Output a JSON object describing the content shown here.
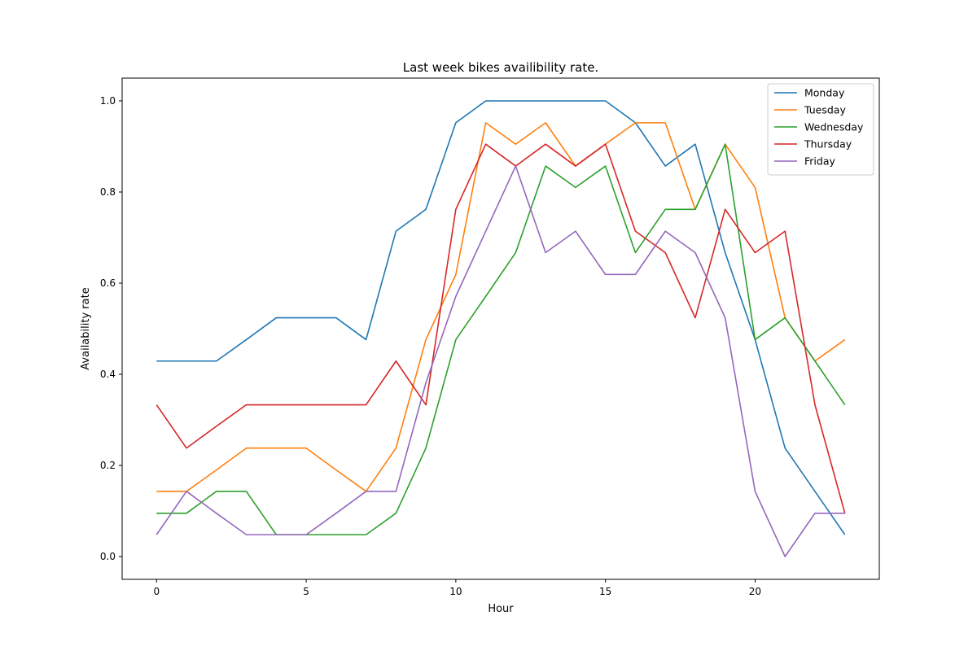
{
  "chart_data": {
    "type": "line",
    "title": "Last week bikes availibility rate.",
    "xlabel": "Hour",
    "ylabel": "Availability rate",
    "xlim": [
      -1.15,
      24.15
    ],
    "ylim": [
      -0.05,
      1.05
    ],
    "xticks": [
      0,
      5,
      10,
      15,
      20
    ],
    "xtick_labels": [
      "0",
      "5",
      "10",
      "15",
      "20"
    ],
    "yticks": [
      0.0,
      0.2,
      0.4,
      0.6,
      0.8,
      1.0
    ],
    "ytick_labels": [
      "0.0",
      "0.2",
      "0.4",
      "0.6",
      "0.8",
      "1.0"
    ],
    "grid": false,
    "legend_position": "top-right",
    "x": [
      0,
      1,
      2,
      3,
      4,
      5,
      6,
      7,
      8,
      9,
      10,
      11,
      12,
      13,
      14,
      15,
      16,
      17,
      18,
      19,
      20,
      21,
      22,
      23
    ],
    "series": [
      {
        "name": "Monday",
        "color": "#1f77b4",
        "values": [
          0.429,
          0.429,
          0.429,
          0.476,
          0.524,
          0.524,
          0.524,
          0.476,
          0.714,
          0.762,
          0.952,
          1.0,
          1.0,
          1.0,
          1.0,
          1.0,
          0.952,
          0.857,
          0.905,
          0.667,
          0.476,
          0.238,
          0.143,
          0.048
        ]
      },
      {
        "name": "Tuesday",
        "color": "#ff7f0e",
        "values": [
          0.143,
          0.143,
          0.19,
          0.238,
          0.238,
          0.238,
          0.19,
          0.143,
          0.238,
          0.476,
          0.619,
          0.952,
          0.905,
          0.952,
          0.857,
          0.905,
          0.952,
          0.952,
          0.762,
          0.905,
          0.81,
          0.524,
          0.429,
          0.476
        ]
      },
      {
        "name": "Wednesday",
        "color": "#2ca02c",
        "values": [
          0.095,
          0.095,
          0.143,
          0.143,
          0.048,
          0.048,
          0.048,
          0.048,
          0.095,
          0.238,
          0.476,
          0.571,
          0.667,
          0.857,
          0.81,
          0.857,
          0.667,
          0.762,
          0.762,
          0.905,
          0.476,
          0.524,
          0.429,
          0.333
        ]
      },
      {
        "name": "Thursday",
        "color": "#d62728",
        "values": [
          0.333,
          0.238,
          0.286,
          0.333,
          0.333,
          0.333,
          0.333,
          0.333,
          0.429,
          0.333,
          0.762,
          0.905,
          0.857,
          0.905,
          0.857,
          0.905,
          0.714,
          0.667,
          0.524,
          0.762,
          0.667,
          0.714,
          0.333,
          0.095
        ]
      },
      {
        "name": "Friday",
        "color": "#9467bd",
        "values": [
          0.048,
          0.143,
          0.095,
          0.048,
          0.048,
          0.048,
          0.095,
          0.143,
          0.143,
          0.381,
          0.571,
          0.714,
          0.857,
          0.667,
          0.714,
          0.619,
          0.619,
          0.714,
          0.667,
          0.524,
          0.143,
          0.0,
          0.095,
          0.095
        ]
      }
    ]
  }
}
